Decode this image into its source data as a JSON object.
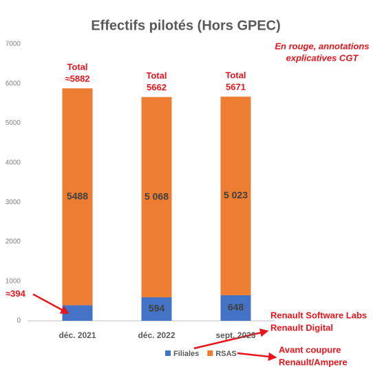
{
  "chart_data": {
    "type": "bar",
    "stacked": true,
    "title": "Effectifs pilotés (Hors GPEC)",
    "categories": [
      "déc. 2021",
      "déc. 2022",
      "sept. 2023"
    ],
    "series": [
      {
        "name": "Filiales",
        "color": "#4472c4",
        "values": [
          394,
          594,
          648
        ],
        "value_labels": [
          "≈394",
          "594",
          "648"
        ]
      },
      {
        "name": "RSAS",
        "color": "#ed7d31",
        "values": [
          5488,
          5068,
          5023
        ],
        "value_labels": [
          "5488",
          "5 068",
          "5 023"
        ]
      }
    ],
    "total_labels": [
      [
        "Total",
        "≈5882"
      ],
      [
        "Total",
        "5662"
      ],
      [
        "Total",
        "5671"
      ]
    ],
    "ylim": [
      0,
      7000
    ],
    "yticks": [
      0,
      1000,
      2000,
      3000,
      4000,
      5000,
      6000,
      7000
    ],
    "grid": false,
    "legend": "bottom",
    "note": [
      "En rouge,  annotations",
      "explicatives CGT"
    ],
    "annotations": [
      [
        "Renault Software Labs",
        "Renault Digital"
      ],
      [
        "Avant coupure",
        "Renault/Ampere"
      ]
    ]
  }
}
